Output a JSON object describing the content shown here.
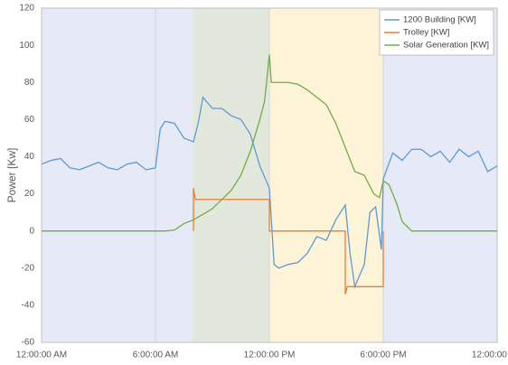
{
  "chart_data": {
    "type": "line",
    "y_label": "Power [Kw]",
    "xlim": [
      0,
      24
    ],
    "ylim": [
      -60,
      120
    ],
    "xticks": [
      {
        "value": 0,
        "label": "12:00:00 AM"
      },
      {
        "value": 6,
        "label": "6:00:00 AM"
      },
      {
        "value": 12,
        "label": "12:00:00 PM"
      },
      {
        "value": 18,
        "label": "6:00:00 PM"
      },
      {
        "value": 24,
        "label": "12:00:00 AM"
      }
    ],
    "yticks": [
      -60,
      -40,
      -20,
      0,
      20,
      40,
      60,
      80,
      100,
      120
    ],
    "grid": true,
    "legend": "top-right",
    "regions": [
      {
        "start": 0,
        "end": 8,
        "color": "#e5eaf6"
      },
      {
        "start": 8,
        "end": 12,
        "color": "#e3e8dc"
      },
      {
        "start": 12,
        "end": 18,
        "color": "#fdf3d6"
      },
      {
        "start": 18,
        "end": 24,
        "color": "#e5eaf6"
      }
    ],
    "series": [
      {
        "name": "1200 Building [KW]",
        "color": "#5b9bd5",
        "x": [
          0,
          0.5,
          1,
          1.5,
          2,
          2.5,
          3,
          3.5,
          4,
          4.5,
          5,
          5.5,
          6,
          6.25,
          6.5,
          7,
          7.5,
          8,
          8.25,
          8.5,
          9,
          9.5,
          10,
          10.5,
          11,
          11.5,
          12,
          12.25,
          12.5,
          13,
          13.5,
          14,
          14.5,
          15,
          15.5,
          16,
          16.25,
          16.5,
          17,
          17.3,
          17.6,
          17.9,
          18,
          18.5,
          19,
          19.5,
          20,
          20.5,
          21,
          21.5,
          22,
          22.5,
          23,
          23.5,
          24
        ],
        "values": [
          36,
          38,
          39,
          34,
          33,
          35,
          37,
          34,
          33,
          36,
          37,
          33,
          34,
          55,
          59,
          58,
          50,
          48,
          58,
          72,
          66,
          66,
          62,
          60,
          52,
          35,
          23,
          -18,
          -20,
          -18,
          -17,
          -12,
          -3,
          -5,
          6,
          14,
          -12,
          -30,
          -18,
          10,
          13,
          -10,
          28,
          42,
          38,
          44,
          44,
          40,
          43,
          37,
          44,
          40,
          43,
          32,
          35
        ]
      },
      {
        "name": "Trolley [KW]",
        "color": "#ed7d31",
        "x": [
          8,
          8,
          8.1,
          12,
          12,
          16,
          16,
          16.1,
          18,
          18
        ],
        "values": [
          0,
          23,
          17,
          17,
          0,
          0,
          -34,
          -30,
          -30,
          0
        ]
      },
      {
        "name": "Solar Generation [KW]",
        "color": "#70ad47",
        "x": [
          0,
          6.5,
          7,
          7.5,
          8,
          8.5,
          9,
          9.5,
          10,
          10.5,
          11,
          11.5,
          11.75,
          12,
          12.1,
          12.5,
          13,
          13.5,
          14,
          14.5,
          15,
          15.5,
          16,
          16.5,
          17,
          17.5,
          17.8,
          18,
          18.3,
          18.7,
          19,
          19.5,
          24
        ],
        "values": [
          0,
          0,
          0.5,
          4,
          6,
          9,
          12,
          17,
          22,
          30,
          43,
          60,
          70,
          95,
          80,
          80,
          80,
          79,
          76,
          72,
          68,
          58,
          45,
          32,
          30,
          20,
          18,
          27,
          25,
          15,
          5,
          0,
          0
        ]
      }
    ]
  }
}
